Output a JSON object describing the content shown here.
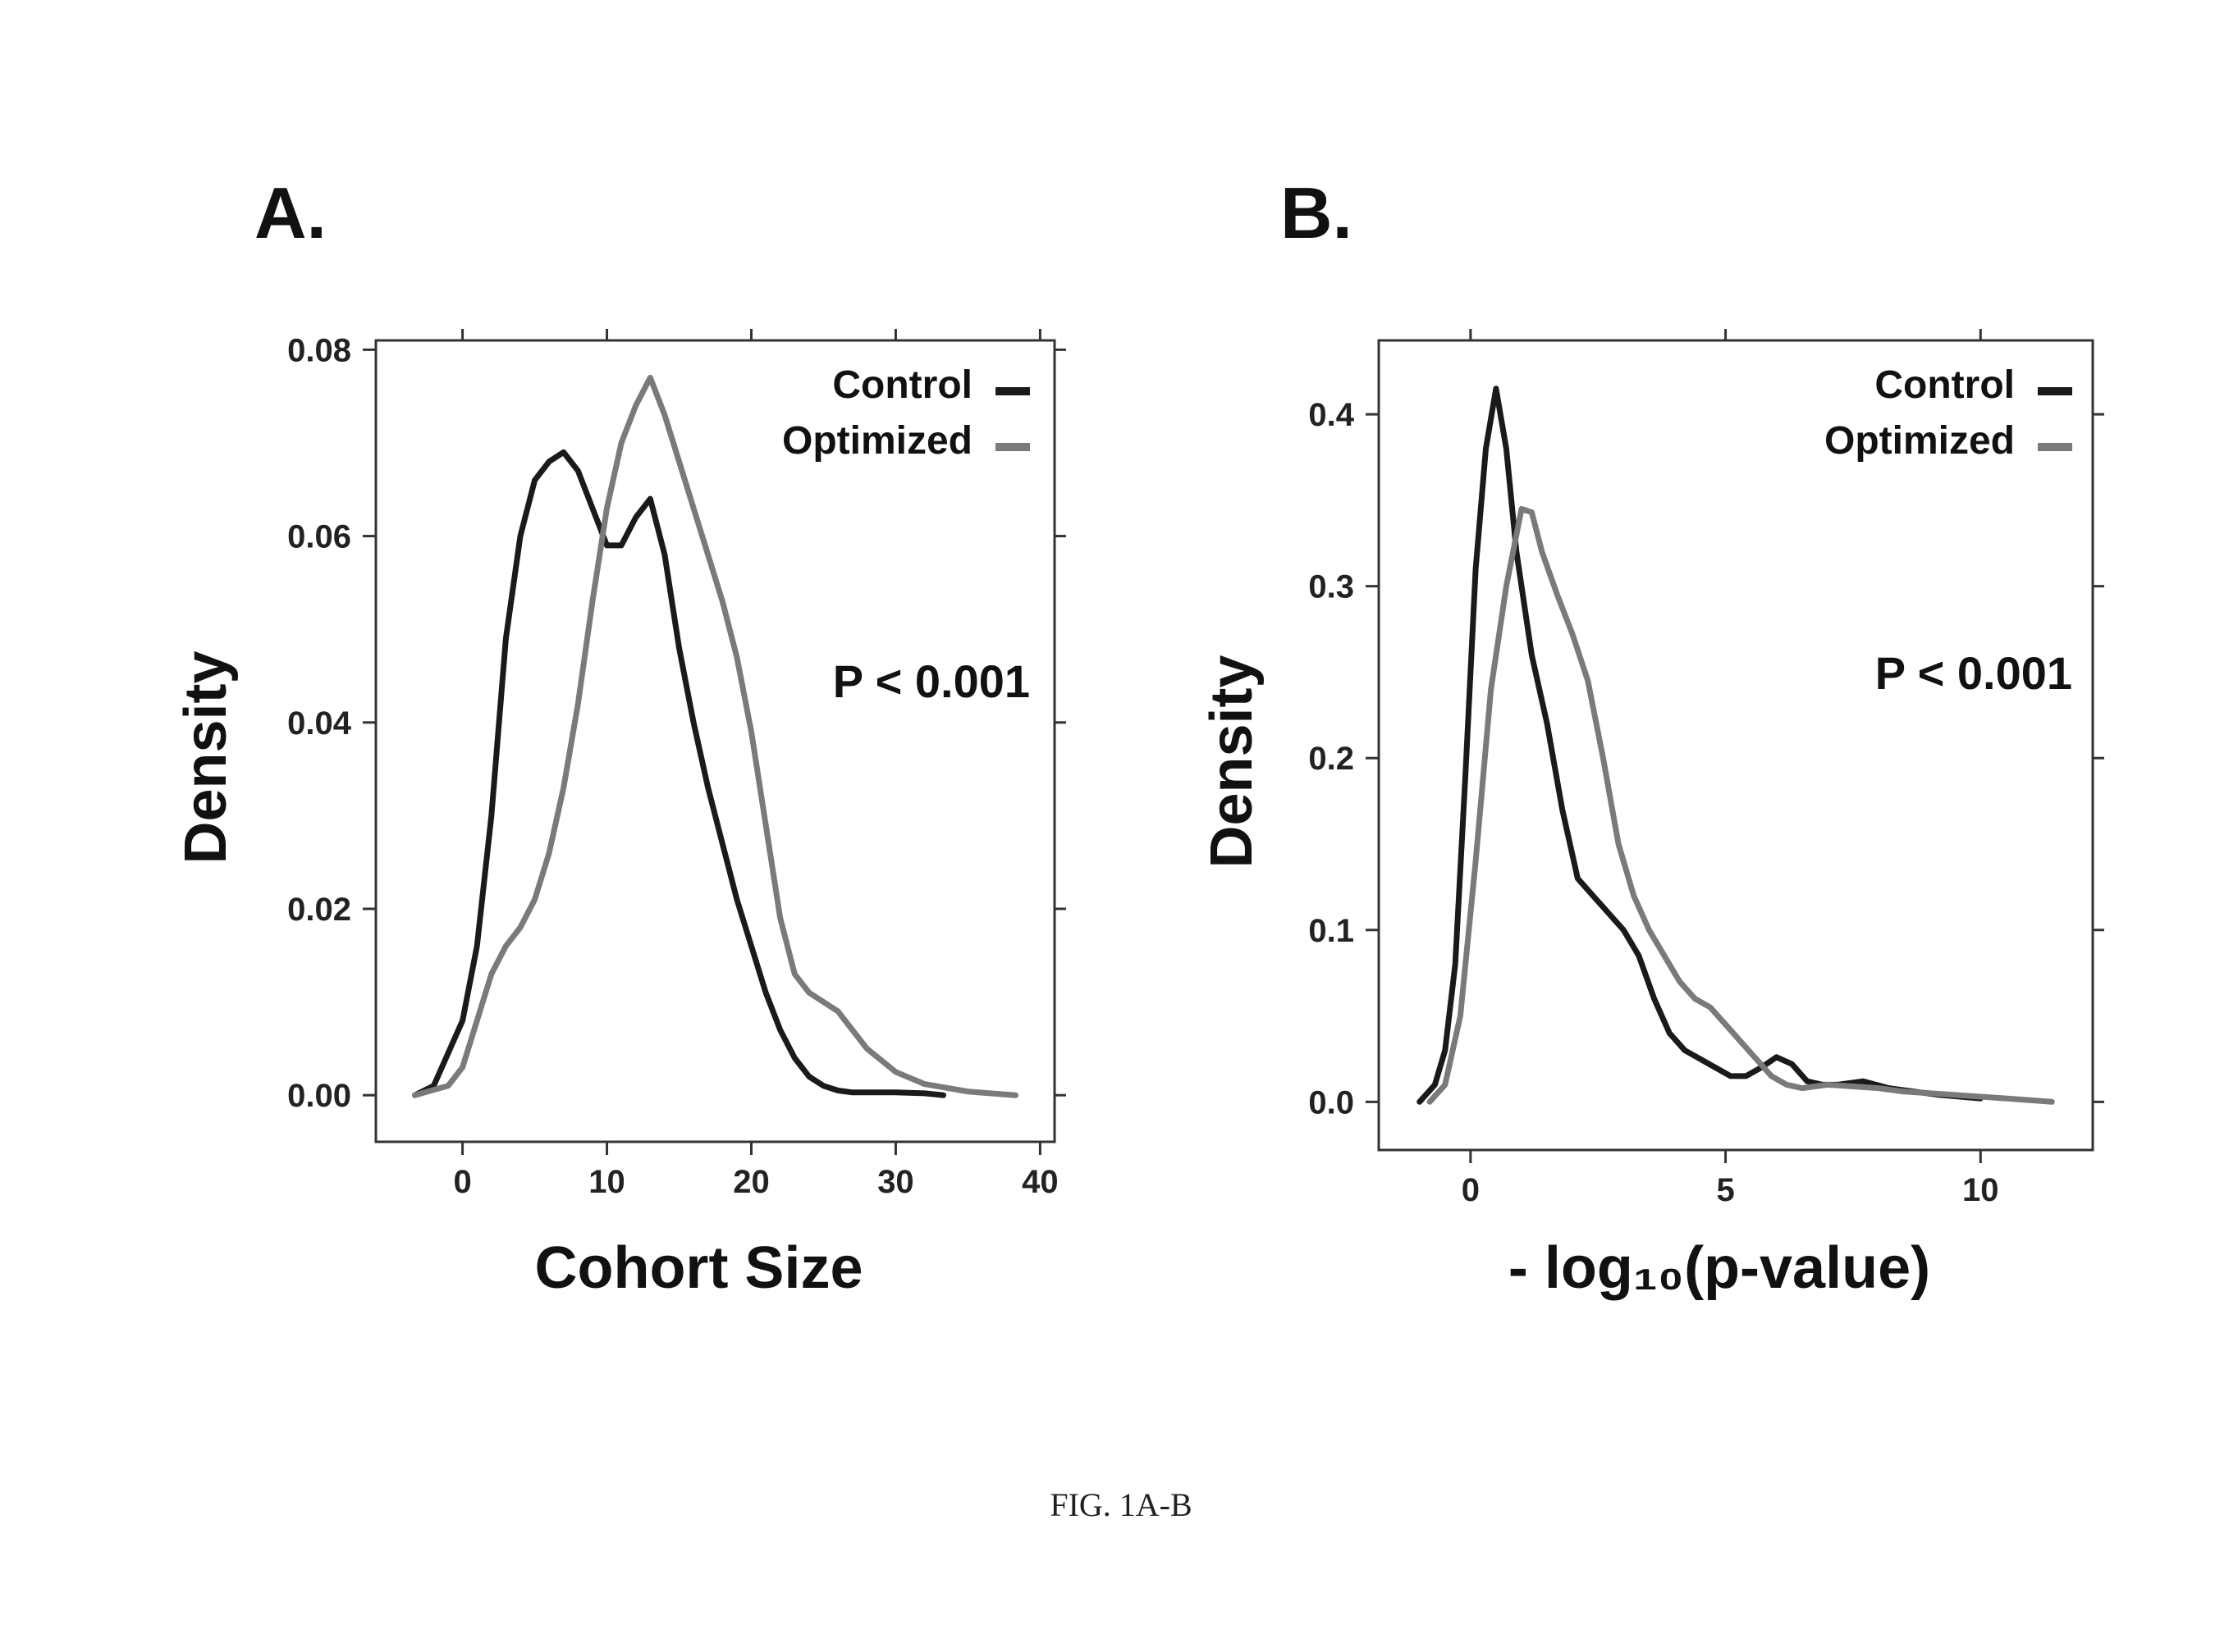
{
  "figure_caption": "FIG. 1A-B",
  "colors": {
    "control": "#1a1a1a",
    "optimized": "#7a7a7a"
  },
  "chart_data": [
    {
      "panel": "A.",
      "type": "line",
      "xlabel": "Cohort Size",
      "ylabel": "Density",
      "xlim": [
        -6,
        41
      ],
      "ylim": [
        -0.005,
        0.081
      ],
      "xticks": [
        0,
        10,
        20,
        30,
        40
      ],
      "yticks": [
        0.0,
        0.02,
        0.04,
        0.06,
        0.08
      ],
      "ytick_labels": [
        "0.00",
        "0.02",
        "0.04",
        "0.06",
        "0.08"
      ],
      "legend_placement": "top-right",
      "annotation": "P < 0.001",
      "series": [
        {
          "name": "Control",
          "color": "#1a1a1a",
          "x": [
            -3.3,
            -2,
            0,
            1,
            2,
            3,
            4,
            5,
            6,
            7,
            8,
            9,
            10,
            11,
            12,
            13,
            14,
            15,
            16,
            17,
            18,
            19,
            20,
            21,
            22,
            23,
            24,
            25,
            26,
            27,
            28,
            30,
            32,
            33.3
          ],
          "y": [
            0.0,
            0.001,
            0.008,
            0.016,
            0.03,
            0.049,
            0.06,
            0.066,
            0.068,
            0.069,
            0.067,
            0.063,
            0.059,
            0.059,
            0.062,
            0.064,
            0.058,
            0.048,
            0.04,
            0.033,
            0.027,
            0.021,
            0.016,
            0.011,
            0.007,
            0.004,
            0.002,
            0.001,
            0.0005,
            0.0003,
            0.0003,
            0.0003,
            0.0002,
            0.0
          ]
        },
        {
          "name": "Optimized",
          "color": "#7a7a7a",
          "x": [
            -3.3,
            -1,
            0,
            1,
            2,
            3,
            4,
            5,
            6,
            7,
            8,
            9,
            10,
            11,
            12,
            13,
            14,
            15,
            16,
            17,
            18,
            19,
            20,
            21,
            22,
            23,
            24,
            25,
            26,
            27,
            28,
            30,
            32,
            35,
            38.3
          ],
          "y": [
            0.0,
            0.001,
            0.003,
            0.008,
            0.013,
            0.016,
            0.018,
            0.021,
            0.026,
            0.033,
            0.042,
            0.053,
            0.063,
            0.07,
            0.074,
            0.077,
            0.073,
            0.068,
            0.063,
            0.058,
            0.053,
            0.047,
            0.039,
            0.029,
            0.019,
            0.013,
            0.011,
            0.01,
            0.009,
            0.007,
            0.005,
            0.0025,
            0.0012,
            0.0004,
            0.0
          ]
        }
      ]
    },
    {
      "panel": "B.",
      "type": "line",
      "xlabel": "- log₁₀(p-value)",
      "ylabel": "Density",
      "xlim": [
        -1.8,
        12.2
      ],
      "ylim": [
        -0.028,
        0.443
      ],
      "xticks": [
        0,
        5,
        10
      ],
      "yticks": [
        0.0,
        0.1,
        0.2,
        0.3,
        0.4
      ],
      "ytick_labels": [
        "0.0",
        "0.1",
        "0.2",
        "0.3",
        "0.4"
      ],
      "legend_placement": "top-right",
      "annotation": "P < 0.001",
      "series": [
        {
          "name": "Control",
          "color": "#1a1a1a",
          "x": [
            -1,
            -0.7,
            -0.5,
            -0.3,
            -0.1,
            0.1,
            0.3,
            0.5,
            0.7,
            0.9,
            1.2,
            1.5,
            1.8,
            2.1,
            2.4,
            2.7,
            3.0,
            3.3,
            3.6,
            3.9,
            4.2,
            4.5,
            4.8,
            5.1,
            5.4,
            5.7,
            6.0,
            6.3,
            6.6,
            6.9,
            7.2,
            7.7,
            8.2,
            8.7,
            9.2,
            10.0
          ],
          "y": [
            0.0,
            0.01,
            0.03,
            0.08,
            0.19,
            0.31,
            0.38,
            0.415,
            0.38,
            0.32,
            0.26,
            0.22,
            0.17,
            0.13,
            0.12,
            0.11,
            0.1,
            0.085,
            0.06,
            0.04,
            0.03,
            0.025,
            0.02,
            0.015,
            0.015,
            0.02,
            0.026,
            0.022,
            0.012,
            0.01,
            0.01,
            0.012,
            0.008,
            0.006,
            0.004,
            0.002
          ]
        },
        {
          "name": "Optimized",
          "color": "#7a7a7a",
          "x": [
            -0.8,
            -0.5,
            -0.2,
            0.1,
            0.4,
            0.7,
            0.9,
            1.0,
            1.2,
            1.4,
            1.7,
            2.0,
            2.3,
            2.6,
            2.9,
            3.2,
            3.5,
            3.8,
            4.1,
            4.4,
            4.7,
            5.0,
            5.3,
            5.6,
            5.9,
            6.2,
            6.5,
            7.0,
            7.5,
            8.0,
            8.5,
            9.0,
            9.5,
            10.0,
            10.5,
            11.4
          ],
          "y": [
            0.0,
            0.01,
            0.05,
            0.14,
            0.24,
            0.3,
            0.33,
            0.345,
            0.343,
            0.32,
            0.295,
            0.272,
            0.245,
            0.2,
            0.15,
            0.12,
            0.1,
            0.085,
            0.07,
            0.06,
            0.055,
            0.045,
            0.035,
            0.025,
            0.015,
            0.01,
            0.008,
            0.01,
            0.009,
            0.008,
            0.006,
            0.005,
            0.004,
            0.003,
            0.002,
            0.0
          ]
        }
      ]
    }
  ]
}
